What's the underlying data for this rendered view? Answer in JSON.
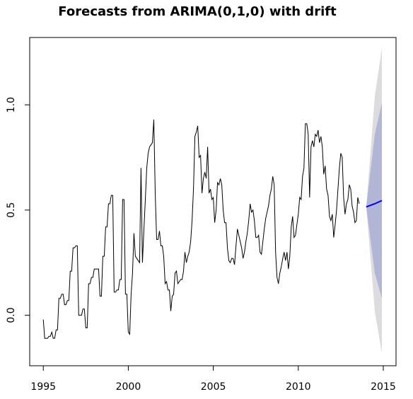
{
  "chart_data": {
    "type": "line",
    "title": "Forecasts from ARIMA(0,1,0) with drift",
    "xlabel": "",
    "ylabel": "",
    "xlim": [
      1994.2,
      2015.75
    ],
    "ylim": [
      -0.24,
      1.32
    ],
    "x_ticks": [
      1995,
      2000,
      2005,
      2010,
      2015
    ],
    "x_tick_labels": [
      "1995",
      "2000",
      "2005",
      "2010",
      "2015"
    ],
    "y_ticks": [
      0.0,
      0.5,
      1.0
    ],
    "y_tick_labels": [
      "0.0",
      "0.5",
      "1.0"
    ],
    "grid": false,
    "legend": "none",
    "colors": {
      "observed": "#000000",
      "forecast": "#0000ff",
      "band_80": "#b1b5d6",
      "band_95": "#dcdcdf"
    },
    "observed": {
      "start": 1995.0,
      "frequency": 12,
      "values": [
        -0.02,
        -0.11,
        -0.11,
        -0.11,
        -0.1,
        -0.1,
        -0.08,
        -0.11,
        -0.11,
        -0.07,
        -0.07,
        0.08,
        0.08,
        0.1,
        0.1,
        0.05,
        0.05,
        0.07,
        0.07,
        0.21,
        0.21,
        0.32,
        0.32,
        0.33,
        0.33,
        0.0,
        0.0,
        0.0,
        0.03,
        0.03,
        -0.06,
        -0.06,
        0.15,
        0.15,
        0.18,
        0.18,
        0.22,
        0.22,
        0.22,
        0.22,
        0.09,
        0.09,
        0.28,
        0.28,
        0.42,
        0.42,
        0.53,
        0.53,
        0.57,
        0.57,
        0.11,
        0.11,
        0.12,
        0.12,
        0.17,
        0.17,
        0.55,
        0.55,
        0.1,
        0.1,
        -0.08,
        -0.09,
        0.1,
        0.2,
        0.39,
        0.28,
        0.27,
        0.26,
        0.25,
        0.7,
        0.25,
        0.4,
        0.55,
        0.7,
        0.77,
        0.8,
        0.81,
        0.82,
        0.93,
        0.58,
        0.36,
        0.36,
        0.4,
        0.33,
        0.33,
        0.28,
        0.15,
        0.16,
        0.12,
        0.12,
        0.02,
        0.09,
        0.1,
        0.2,
        0.21,
        0.15,
        0.16,
        0.17,
        0.17,
        0.21,
        0.3,
        0.25,
        0.28,
        0.3,
        0.35,
        0.45,
        0.6,
        0.85,
        0.87,
        0.9,
        0.75,
        0.76,
        0.58,
        0.65,
        0.68,
        0.65,
        0.8,
        0.58,
        0.6,
        0.55,
        0.56,
        0.44,
        0.5,
        0.63,
        0.62,
        0.65,
        0.62,
        0.5,
        0.44,
        0.44,
        0.32,
        0.26,
        0.25,
        0.27,
        0.27,
        0.24,
        0.33,
        0.41,
        0.38,
        0.35,
        0.32,
        0.27,
        0.3,
        0.35,
        0.39,
        0.45,
        0.53,
        0.49,
        0.5,
        0.45,
        0.37,
        0.37,
        0.38,
        0.3,
        0.29,
        0.35,
        0.41,
        0.46,
        0.49,
        0.52,
        0.57,
        0.6,
        0.66,
        0.62,
        0.3,
        0.18,
        0.15,
        0.2,
        0.23,
        0.27,
        0.3,
        0.26,
        0.3,
        0.22,
        0.28,
        0.42,
        0.47,
        0.37,
        0.38,
        0.43,
        0.48,
        0.56,
        0.55,
        0.66,
        0.7,
        0.91,
        0.91,
        0.86,
        0.56,
        0.8,
        0.83,
        0.8,
        0.86,
        0.85,
        0.88,
        0.82,
        0.85,
        0.8,
        0.67,
        0.71,
        0.6,
        0.57,
        0.47,
        0.45,
        0.48,
        0.37,
        0.43,
        0.5,
        0.6,
        0.7,
        0.77,
        0.75,
        0.56,
        0.48,
        0.53,
        0.55,
        0.62,
        0.6,
        0.52,
        0.49,
        0.44,
        0.45,
        0.56,
        0.53
      ]
    },
    "forecast": {
      "x": [
        2014.0,
        2014.5,
        2014.917
      ],
      "mean": [
        0.515,
        0.53,
        0.545
      ],
      "lo80": [
        0.515,
        0.2,
        0.08
      ],
      "hi80": [
        0.515,
        0.86,
        1.01
      ],
      "lo95": [
        0.515,
        0.02,
        -0.18
      ],
      "hi95": [
        0.515,
        1.04,
        1.27
      ]
    }
  }
}
